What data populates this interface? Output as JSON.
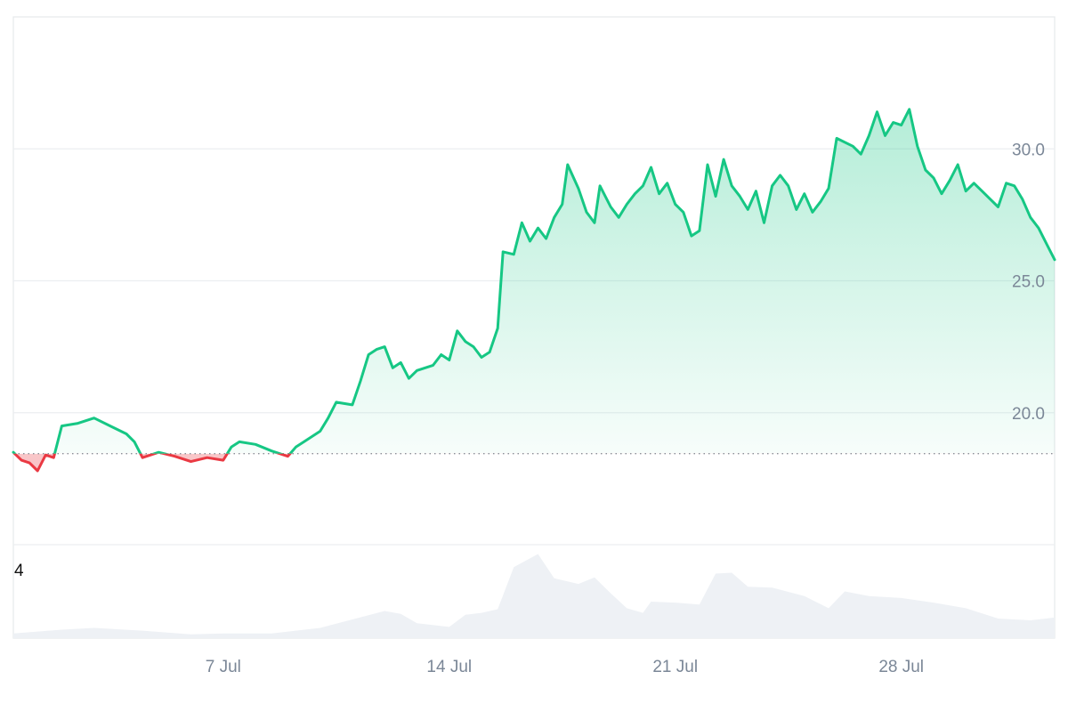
{
  "chart_data": {
    "type": "area",
    "x_type": "date",
    "x_start": "2024-06-30T12:00",
    "x_end": "2024-08-01T18:00",
    "ylim": [
      15.0,
      35.0
    ],
    "y_ticks": [
      20.0,
      25.0,
      30.0
    ],
    "y_tick_labels": [
      "20.0",
      "25.0",
      "30.0"
    ],
    "x_ticks": [
      "2024-07-07",
      "2024-07-14",
      "2024-07-21",
      "2024-07-28"
    ],
    "x_tick_labels": [
      "7 Jul",
      "14 Jul",
      "21 Jul",
      "28 Jul"
    ],
    "baseline": 18.45,
    "colors": {
      "up": "#16c784",
      "down": "#ea3943",
      "volume": "#eef1f5"
    },
    "grid": true,
    "legend": "none",
    "series": [
      {
        "values": [
          [
            "2024-06-30T12:00",
            18.5
          ],
          [
            "2024-06-30T18:00",
            18.2
          ],
          [
            "2024-07-01T00:00",
            18.1
          ],
          [
            "2024-07-01T06:00",
            17.8
          ],
          [
            "2024-07-01T12:00",
            18.4
          ],
          [
            "2024-07-01T18:00",
            18.3
          ],
          [
            "2024-07-02T00:00",
            19.5
          ],
          [
            "2024-07-02T12:00",
            19.6
          ],
          [
            "2024-07-03T00:00",
            19.8
          ],
          [
            "2024-07-03T12:00",
            19.5
          ],
          [
            "2024-07-04T00:00",
            19.2
          ],
          [
            "2024-07-04T06:00",
            18.9
          ],
          [
            "2024-07-04T12:00",
            18.3
          ],
          [
            "2024-07-05T00:00",
            18.5
          ],
          [
            "2024-07-05T12:00",
            18.35
          ],
          [
            "2024-07-06T00:00",
            18.15
          ],
          [
            "2024-07-06T12:00",
            18.3
          ],
          [
            "2024-07-07T00:00",
            18.2
          ],
          [
            "2024-07-07T06:00",
            18.7
          ],
          [
            "2024-07-07T12:00",
            18.9
          ],
          [
            "2024-07-08T00:00",
            18.8
          ],
          [
            "2024-07-08T12:00",
            18.55
          ],
          [
            "2024-07-09T00:00",
            18.35
          ],
          [
            "2024-07-09T06:00",
            18.7
          ],
          [
            "2024-07-09T12:00",
            18.9
          ],
          [
            "2024-07-10T00:00",
            19.3
          ],
          [
            "2024-07-10T06:00",
            19.8
          ],
          [
            "2024-07-10T12:00",
            20.4
          ],
          [
            "2024-07-11T00:00",
            20.3
          ],
          [
            "2024-07-11T06:00",
            21.2
          ],
          [
            "2024-07-11T12:00",
            22.2
          ],
          [
            "2024-07-11T18:00",
            22.4
          ],
          [
            "2024-07-12T00:00",
            22.5
          ],
          [
            "2024-07-12T06:00",
            21.7
          ],
          [
            "2024-07-12T12:00",
            21.9
          ],
          [
            "2024-07-12T18:00",
            21.3
          ],
          [
            "2024-07-13T00:00",
            21.6
          ],
          [
            "2024-07-13T12:00",
            21.8
          ],
          [
            "2024-07-13T18:00",
            22.2
          ],
          [
            "2024-07-14T00:00",
            22.0
          ],
          [
            "2024-07-14T06:00",
            23.1
          ],
          [
            "2024-07-14T12:00",
            22.7
          ],
          [
            "2024-07-14T18:00",
            22.5
          ],
          [
            "2024-07-15T00:00",
            22.1
          ],
          [
            "2024-07-15T06:00",
            22.3
          ],
          [
            "2024-07-15T12:00",
            23.2
          ],
          [
            "2024-07-15T16:00",
            26.1
          ],
          [
            "2024-07-16T00:00",
            26.0
          ],
          [
            "2024-07-16T06:00",
            27.2
          ],
          [
            "2024-07-16T12:00",
            26.5
          ],
          [
            "2024-07-16T18:00",
            27.0
          ],
          [
            "2024-07-17T00:00",
            26.6
          ],
          [
            "2024-07-17T06:00",
            27.4
          ],
          [
            "2024-07-17T12:00",
            27.9
          ],
          [
            "2024-07-17T16:00",
            29.4
          ],
          [
            "2024-07-18T00:00",
            28.5
          ],
          [
            "2024-07-18T06:00",
            27.6
          ],
          [
            "2024-07-18T12:00",
            27.2
          ],
          [
            "2024-07-18T16:00",
            28.6
          ],
          [
            "2024-07-19T00:00",
            27.8
          ],
          [
            "2024-07-19T06:00",
            27.4
          ],
          [
            "2024-07-19T12:00",
            27.9
          ],
          [
            "2024-07-19T18:00",
            28.3
          ],
          [
            "2024-07-20T00:00",
            28.6
          ],
          [
            "2024-07-20T06:00",
            29.3
          ],
          [
            "2024-07-20T12:00",
            28.3
          ],
          [
            "2024-07-20T18:00",
            28.7
          ],
          [
            "2024-07-21T00:00",
            27.9
          ],
          [
            "2024-07-21T06:00",
            27.6
          ],
          [
            "2024-07-21T12:00",
            26.7
          ],
          [
            "2024-07-21T18:00",
            26.9
          ],
          [
            "2024-07-22T00:00",
            29.4
          ],
          [
            "2024-07-22T06:00",
            28.2
          ],
          [
            "2024-07-22T12:00",
            29.6
          ],
          [
            "2024-07-22T18:00",
            28.6
          ],
          [
            "2024-07-23T00:00",
            28.2
          ],
          [
            "2024-07-23T06:00",
            27.7
          ],
          [
            "2024-07-23T12:00",
            28.4
          ],
          [
            "2024-07-23T18:00",
            27.2
          ],
          [
            "2024-07-24T00:00",
            28.6
          ],
          [
            "2024-07-24T06:00",
            29.0
          ],
          [
            "2024-07-24T12:00",
            28.6
          ],
          [
            "2024-07-24T18:00",
            27.7
          ],
          [
            "2024-07-25T00:00",
            28.3
          ],
          [
            "2024-07-25T06:00",
            27.6
          ],
          [
            "2024-07-25T12:00",
            28.0
          ],
          [
            "2024-07-25T18:00",
            28.5
          ],
          [
            "2024-07-26T00:00",
            30.4
          ],
          [
            "2024-07-26T12:00",
            30.1
          ],
          [
            "2024-07-26T18:00",
            29.8
          ],
          [
            "2024-07-27T00:00",
            30.5
          ],
          [
            "2024-07-27T06:00",
            31.4
          ],
          [
            "2024-07-27T12:00",
            30.5
          ],
          [
            "2024-07-27T18:00",
            31.0
          ],
          [
            "2024-07-28T00:00",
            30.9
          ],
          [
            "2024-07-28T06:00",
            31.5
          ],
          [
            "2024-07-28T12:00",
            30.1
          ],
          [
            "2024-07-28T18:00",
            29.2
          ],
          [
            "2024-07-29T00:00",
            28.9
          ],
          [
            "2024-07-29T06:00",
            28.3
          ],
          [
            "2024-07-29T12:00",
            28.8
          ],
          [
            "2024-07-29T18:00",
            29.4
          ],
          [
            "2024-07-30T00:00",
            28.4
          ],
          [
            "2024-07-30T06:00",
            28.7
          ],
          [
            "2024-07-30T12:00",
            28.4
          ],
          [
            "2024-07-30T18:00",
            28.1
          ],
          [
            "2024-07-31T00:00",
            27.8
          ],
          [
            "2024-07-31T06:00",
            28.7
          ],
          [
            "2024-07-31T12:00",
            28.6
          ],
          [
            "2024-07-31T18:00",
            28.1
          ],
          [
            "2024-08-01T00:00",
            27.4
          ],
          [
            "2024-08-01T06:00",
            27.0
          ],
          [
            "2024-08-01T12:00",
            26.4
          ],
          [
            "2024-08-01T18:00",
            25.8
          ]
        ]
      }
    ],
    "volume": {
      "ylim": [
        0,
        5
      ],
      "y_ticks": [
        4
      ],
      "y_tick_labels": [
        "4"
      ],
      "values": [
        [
          "2024-06-30T12:00",
          0.25
        ],
        [
          "2024-07-02T00:00",
          0.45
        ],
        [
          "2024-07-03T00:00",
          0.55
        ],
        [
          "2024-07-04T12:00",
          0.4
        ],
        [
          "2024-07-06T00:00",
          0.2
        ],
        [
          "2024-07-07T00:00",
          0.25
        ],
        [
          "2024-07-08T12:00",
          0.25
        ],
        [
          "2024-07-10T00:00",
          0.55
        ],
        [
          "2024-07-11T00:00",
          1.0
        ],
        [
          "2024-07-12T00:00",
          1.45
        ],
        [
          "2024-07-12T12:00",
          1.3
        ],
        [
          "2024-07-13T00:00",
          0.8
        ],
        [
          "2024-07-14T00:00",
          0.6
        ],
        [
          "2024-07-14T12:00",
          1.25
        ],
        [
          "2024-07-15T00:00",
          1.35
        ],
        [
          "2024-07-15T12:00",
          1.55
        ],
        [
          "2024-07-16T00:00",
          3.8
        ],
        [
          "2024-07-16T18:00",
          4.5
        ],
        [
          "2024-07-17T06:00",
          3.2
        ],
        [
          "2024-07-18T00:00",
          2.9
        ],
        [
          "2024-07-18T12:00",
          3.25
        ],
        [
          "2024-07-19T00:00",
          2.4
        ],
        [
          "2024-07-19T12:00",
          1.6
        ],
        [
          "2024-07-20T00:00",
          1.35
        ],
        [
          "2024-07-20T06:00",
          1.95
        ],
        [
          "2024-07-21T00:00",
          1.9
        ],
        [
          "2024-07-21T18:00",
          1.8
        ],
        [
          "2024-07-22T06:00",
          3.45
        ],
        [
          "2024-07-22T18:00",
          3.5
        ],
        [
          "2024-07-23T06:00",
          2.75
        ],
        [
          "2024-07-24T00:00",
          2.7
        ],
        [
          "2024-07-25T00:00",
          2.25
        ],
        [
          "2024-07-25T18:00",
          1.6
        ],
        [
          "2024-07-26T06:00",
          2.5
        ],
        [
          "2024-07-27T00:00",
          2.25
        ],
        [
          "2024-07-28T00:00",
          2.15
        ],
        [
          "2024-07-29T00:00",
          1.9
        ],
        [
          "2024-07-30T00:00",
          1.6
        ],
        [
          "2024-07-31T00:00",
          1.05
        ],
        [
          "2024-08-01T00:00",
          0.95
        ],
        [
          "2024-08-01T18:00",
          1.1
        ]
      ]
    }
  }
}
